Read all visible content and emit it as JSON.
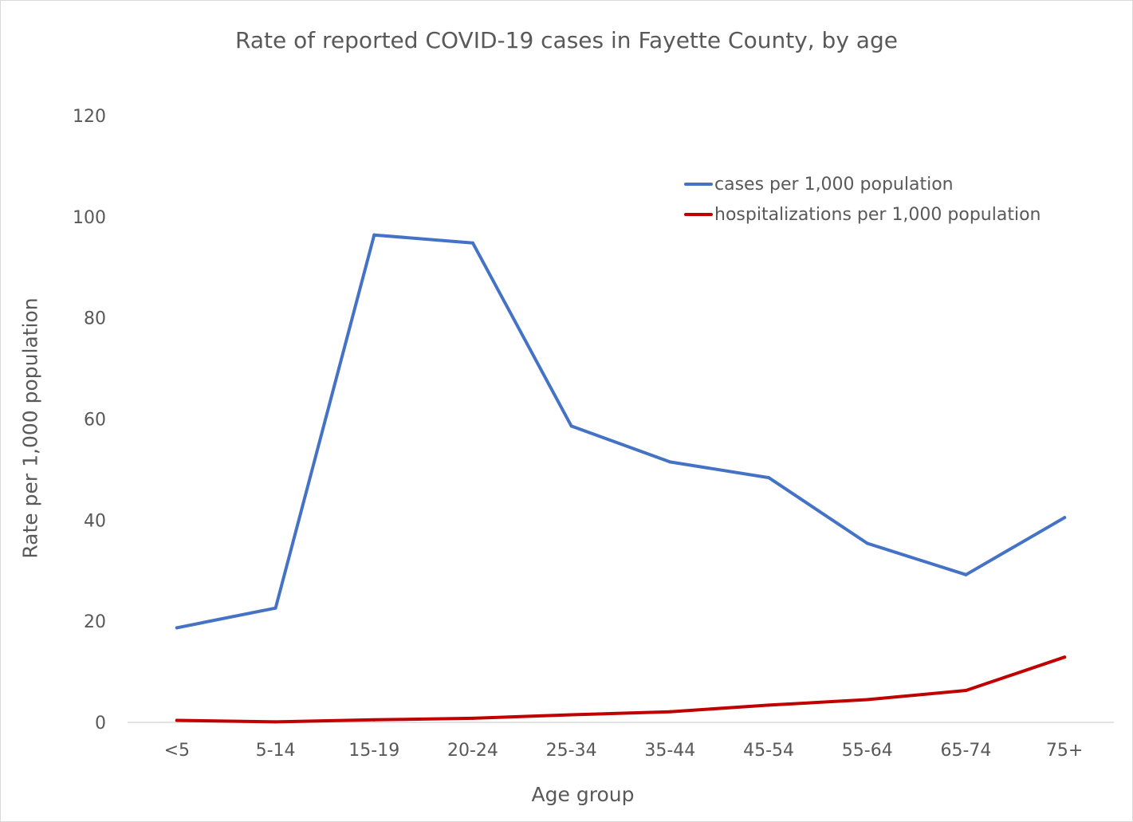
{
  "chart_data": {
    "type": "line",
    "title": "Rate of reported COVID-19 cases in Fayette County, by age",
    "xlabel": "Age group",
    "ylabel": "Rate per 1,000 population",
    "categories": [
      "<5",
      "5-14",
      "15-19",
      "20-24",
      "25-34",
      "35-44",
      "45-54",
      "55-64",
      "65-74",
      "75+"
    ],
    "ylim": [
      0,
      120
    ],
    "yticks": [
      "0",
      "20",
      "40",
      "60",
      "80",
      "100",
      "120"
    ],
    "grid": false,
    "legend_position": "top-right",
    "series": [
      {
        "name": "cases per 1,000 population",
        "color": "#4472c4",
        "values": [
          18.7,
          22.6,
          96.4,
          94.8,
          58.6,
          51.5,
          48.4,
          35.4,
          29.2,
          40.5
        ]
      },
      {
        "name": "hospitalizations per 1,000 population",
        "color": "#c00000",
        "values": [
          0.4,
          0.1,
          0.5,
          0.8,
          1.5,
          2.1,
          3.4,
          4.5,
          6.3,
          12.9
        ]
      }
    ]
  }
}
